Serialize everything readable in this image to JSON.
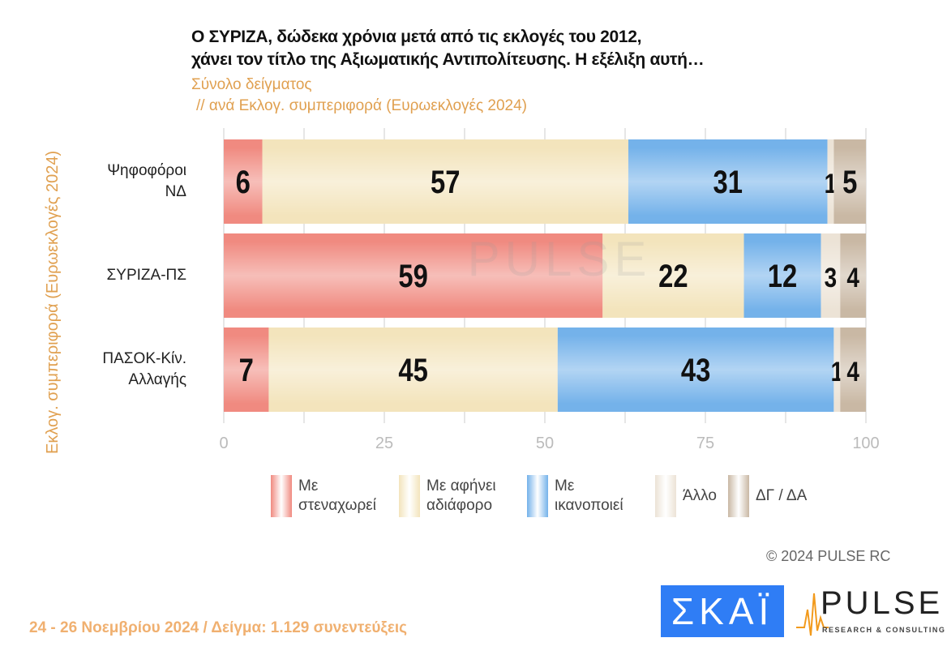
{
  "chart_data": {
    "type": "bar",
    "orientation": "horizontal",
    "stacked": true,
    "title": "Ο ΣΥΡΙΖΑ, δώδεκα χρόνια μετά από τις εκλογές του 2012,\nχάνει τον τίτλο της Αξιωματικής Αντιπολίτευσης. Η εξέλιξη αυτή…",
    "subtitle1": "Σύνολο δείγματος",
    "subtitle2": "// ανά Εκλογ. συμπεριφορά (Ευρωεκλογές 2024)",
    "ylabel": "Εκλογ. συμπεριφορά (Ευρωεκλογές 2024)",
    "categories": [
      "Ψηφοφόροι\nΝΔ",
      "ΣΥΡΙΖΑ-ΠΣ",
      "ΠΑΣΟΚ-Κίν.\nΑλλαγής"
    ],
    "series": [
      {
        "name": "Με στεναχωρεί",
        "values": [
          6,
          59,
          7
        ],
        "color": "#f08a80"
      },
      {
        "name": "Με αφήνει αδιάφορο",
        "values": [
          57,
          22,
          45
        ],
        "color": "#f3e4bc"
      },
      {
        "name": "Με ικανοποιεί",
        "values": [
          31,
          12,
          43
        ],
        "color": "#74b2ea"
      },
      {
        "name": "Άλλο",
        "values": [
          1,
          3,
          1
        ],
        "color": "#ece3d6"
      },
      {
        "name": "ΔΓ / ΔΑ",
        "values": [
          5,
          4,
          4
        ],
        "color": "#c9b8a4"
      }
    ],
    "xlim": [
      0,
      100
    ],
    "xticks": [
      "0",
      "25",
      "50",
      "75",
      "100"
    ],
    "grid": true,
    "legend": "bottom"
  },
  "footer": "24 - 26 Νοεμβρίου 2024  /  Δείγμα:  1.129 συνεντεύξεις",
  "copyright": "©  2024  PULSE RC",
  "logos": {
    "skai": "ΣΚΑΪ",
    "pulse": "PULSE",
    "pulse_sub": "RESEARCH & CONSULTING"
  }
}
